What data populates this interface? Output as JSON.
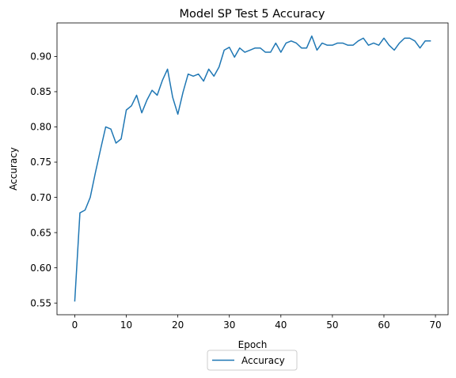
{
  "chart_data": {
    "type": "line",
    "title": "Model SP Test 5 Accuracy",
    "xlabel": "Epoch",
    "ylabel": "Accuracy",
    "xlim": [
      -3.45,
      72.45
    ],
    "ylim": [
      0.5334,
      0.9476
    ],
    "xticks": [
      0,
      10,
      20,
      30,
      40,
      50,
      60,
      70
    ],
    "xtick_labels": [
      "0",
      "10",
      "20",
      "30",
      "40",
      "50",
      "60",
      "70"
    ],
    "yticks": [
      0.55,
      0.6,
      0.65,
      0.7,
      0.75,
      0.8,
      0.85,
      0.9
    ],
    "ytick_labels": [
      "0.55",
      "0.60",
      "0.65",
      "0.70",
      "0.75",
      "0.80",
      "0.85",
      "0.90"
    ],
    "grid": false,
    "legend_position": "below the plot, centered",
    "series": [
      {
        "name": "Accuracy",
        "color": "#1f77b4",
        "x": [
          0,
          1,
          2,
          3,
          4,
          5,
          6,
          7,
          8,
          9,
          10,
          11,
          12,
          13,
          14,
          15,
          16,
          17,
          18,
          19,
          20,
          21,
          22,
          23,
          24,
          25,
          26,
          27,
          28,
          29,
          30,
          31,
          32,
          33,
          34,
          35,
          36,
          37,
          38,
          39,
          40,
          41,
          42,
          43,
          44,
          45,
          46,
          47,
          48,
          49,
          50,
          51,
          52,
          53,
          54,
          55,
          56,
          57,
          58,
          59,
          60,
          61,
          62,
          63,
          64,
          65,
          66,
          67,
          68,
          69
        ],
        "values": [
          0.553,
          0.678,
          0.682,
          0.7,
          0.735,
          0.768,
          0.8,
          0.797,
          0.777,
          0.783,
          0.824,
          0.83,
          0.845,
          0.82,
          0.838,
          0.852,
          0.845,
          0.866,
          0.882,
          0.842,
          0.818,
          0.849,
          0.875,
          0.872,
          0.875,
          0.865,
          0.882,
          0.872,
          0.885,
          0.909,
          0.913,
          0.899,
          0.912,
          0.906,
          0.909,
          0.912,
          0.912,
          0.906,
          0.906,
          0.919,
          0.906,
          0.919,
          0.922,
          0.919,
          0.912,
          0.912,
          0.929,
          0.909,
          0.919,
          0.916,
          0.916,
          0.919,
          0.919,
          0.916,
          0.916,
          0.922,
          0.926,
          0.916,
          0.919,
          0.916,
          0.926,
          0.916,
          0.909,
          0.919,
          0.926,
          0.926,
          0.922,
          0.912,
          0.922,
          0.922
        ]
      }
    ]
  }
}
